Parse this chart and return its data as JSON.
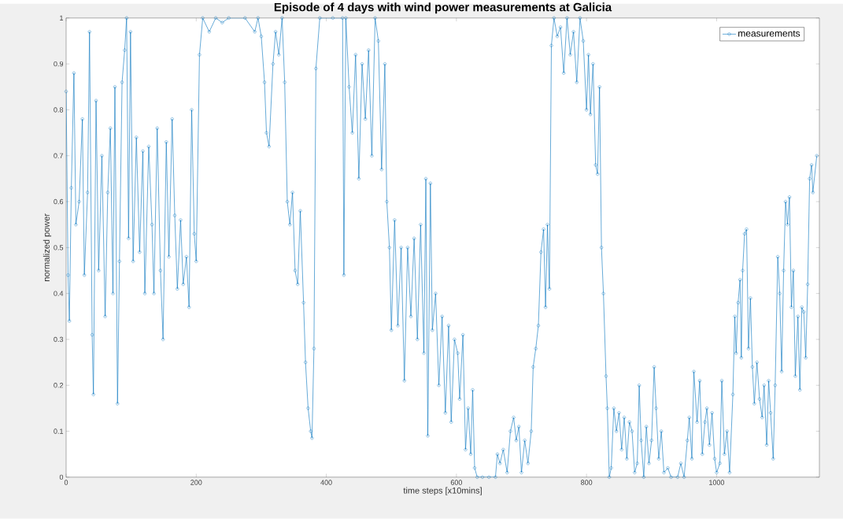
{
  "chart_data": {
    "type": "line",
    "title": "Episode of 4 days with wind power measurements at Galicia",
    "xlabel": "time steps [x10mins]",
    "ylabel": "normalized power",
    "xlim": [
      0,
      1158
    ],
    "ylim": [
      0,
      1
    ],
    "xticks": [
      0,
      200,
      400,
      600,
      800,
      1000
    ],
    "yticks": [
      0,
      0.1,
      0.2,
      0.3,
      0.4,
      0.5,
      0.6,
      0.7,
      0.8,
      0.9,
      1
    ],
    "grid": false,
    "legend": "top right",
    "marker": "circle",
    "line_style": "solid",
    "series": [
      {
        "name": "measurements",
        "color": "#0072bd",
        "x": [
          0,
          3,
          5,
          8,
          12,
          15,
          20,
          25,
          28,
          33,
          36,
          40,
          42,
          46,
          50,
          55,
          60,
          64,
          68,
          72,
          75,
          79,
          82,
          86,
          90,
          93,
          96,
          99,
          103,
          108,
          113,
          118,
          121,
          127,
          132,
          135,
          140,
          145,
          149,
          154,
          158,
          163,
          167,
          171,
          176,
          180,
          185,
          189,
          193,
          197,
          200,
          205,
          210,
          220,
          230,
          240,
          250,
          275,
          290,
          295,
          300,
          305,
          308,
          312,
          318,
          322,
          327,
          332,
          336,
          340,
          344,
          348,
          352,
          356,
          360,
          365,
          368,
          372,
          376,
          378,
          381,
          384,
          390,
          410,
          425,
          427,
          430,
          435,
          440,
          445,
          450,
          455,
          460,
          465,
          470,
          475,
          480,
          485,
          490,
          493,
          497,
          500,
          505,
          510,
          515,
          520,
          525,
          530,
          535,
          540,
          545,
          550,
          553,
          556,
          560,
          563,
          568,
          573,
          578,
          583,
          588,
          592,
          597,
          602,
          605,
          610,
          614,
          618,
          622,
          625,
          628,
          632,
          640,
          650,
          660,
          663,
          667,
          672,
          678,
          683,
          688,
          692,
          696,
          700,
          705,
          710,
          715,
          718,
          722,
          726,
          730,
          734,
          737,
          740,
          743,
          746,
          750,
          755,
          760,
          765,
          770,
          775,
          780,
          785,
          790,
          795,
          800,
          803,
          806,
          810,
          814,
          817,
          820,
          823,
          826,
          830,
          832,
          835,
          838,
          842,
          846,
          850,
          854,
          858,
          862,
          866,
          870,
          874,
          878,
          881,
          884,
          888,
          892,
          896,
          900,
          904,
          907,
          911,
          915,
          919,
          925,
          930,
          940,
          945,
          950,
          955,
          958,
          962,
          965,
          970,
          974,
          978,
          982,
          985,
          989,
          993,
          997,
          1000,
          1005,
          1008,
          1012,
          1016,
          1020,
          1025,
          1028,
          1030,
          1033,
          1036,
          1038,
          1040,
          1043,
          1046,
          1049,
          1052,
          1055,
          1058,
          1062,
          1066,
          1070,
          1073,
          1077,
          1080,
          1083,
          1087,
          1090,
          1094,
          1097,
          1100,
          1103,
          1106,
          1109,
          1112,
          1115,
          1118,
          1121,
          1125,
          1128,
          1131,
          1134,
          1137,
          1140,
          1143,
          1146,
          1148,
          1154
        ],
        "values": [
          0.84,
          0.44,
          0.34,
          0.63,
          0.88,
          0.55,
          0.6,
          0.78,
          0.44,
          0.62,
          0.97,
          0.31,
          0.18,
          0.82,
          0.45,
          0.7,
          0.35,
          0.62,
          0.76,
          0.4,
          0.85,
          0.16,
          0.47,
          0.86,
          0.93,
          1.0,
          0.52,
          0.97,
          0.47,
          0.74,
          0.49,
          0.71,
          0.4,
          0.72,
          0.55,
          0.4,
          0.76,
          0.45,
          0.3,
          0.73,
          0.48,
          0.78,
          0.57,
          0.41,
          0.56,
          0.42,
          0.48,
          0.37,
          0.8,
          0.53,
          0.47,
          0.92,
          1.0,
          0.97,
          1.0,
          0.99,
          1.0,
          1.0,
          0.97,
          1.0,
          0.96,
          0.86,
          0.75,
          0.72,
          0.9,
          0.97,
          0.92,
          1.0,
          0.86,
          0.6,
          0.55,
          0.62,
          0.45,
          0.42,
          0.58,
          0.38,
          0.25,
          0.15,
          0.1,
          0.085,
          0.28,
          0.89,
          1.0,
          1.0,
          1.0,
          0.44,
          1.0,
          0.85,
          0.75,
          0.92,
          0.65,
          0.9,
          0.78,
          0.93,
          0.7,
          1.0,
          0.95,
          0.67,
          0.9,
          0.6,
          0.5,
          0.32,
          0.56,
          0.33,
          0.5,
          0.21,
          0.5,
          0.35,
          0.52,
          0.3,
          0.55,
          0.27,
          0.65,
          0.09,
          0.64,
          0.32,
          0.4,
          0.2,
          0.35,
          0.14,
          0.33,
          0.12,
          0.3,
          0.27,
          0.17,
          0.31,
          0.06,
          0.15,
          0.05,
          0.19,
          0.02,
          0.0,
          0.0,
          0.0,
          0.0,
          0.05,
          0.03,
          0.06,
          0.01,
          0.1,
          0.13,
          0.08,
          0.11,
          0.01,
          0.08,
          0.03,
          0.1,
          0.24,
          0.28,
          0.33,
          0.49,
          0.54,
          0.37,
          0.55,
          0.41,
          0.94,
          1.0,
          0.96,
          0.98,
          0.88,
          1.0,
          0.92,
          0.97,
          0.86,
          1.0,
          0.95,
          0.8,
          0.92,
          0.79,
          0.9,
          0.68,
          0.66,
          0.85,
          0.5,
          0.4,
          0.22,
          0.15,
          0.0,
          0.02,
          0.15,
          0.1,
          0.14,
          0.06,
          0.13,
          0.04,
          0.12,
          0.1,
          0.01,
          0.03,
          0.2,
          0.08,
          0.0,
          0.11,
          0.03,
          0.08,
          0.24,
          0.15,
          0.04,
          0.1,
          0.01,
          0.02,
          0.0,
          0.0,
          0.03,
          0.0,
          0.08,
          0.13,
          0.04,
          0.23,
          0.12,
          0.21,
          0.05,
          0.12,
          0.15,
          0.07,
          0.14,
          0.04,
          0.01,
          0.03,
          0.21,
          0.05,
          0.1,
          0.01,
          0.18,
          0.35,
          0.27,
          0.38,
          0.43,
          0.26,
          0.45,
          0.53,
          0.54,
          0.28,
          0.39,
          0.24,
          0.16,
          0.25,
          0.17,
          0.13,
          0.2,
          0.07,
          0.21,
          0.14,
          0.04,
          0.2,
          0.48,
          0.4,
          0.23,
          0.45,
          0.6,
          0.55,
          0.61,
          0.37,
          0.45,
          0.22,
          0.35,
          0.19,
          0.37,
          0.36,
          0.26,
          0.42,
          0.65,
          0.68,
          0.62,
          0.7
        ]
      }
    ]
  }
}
